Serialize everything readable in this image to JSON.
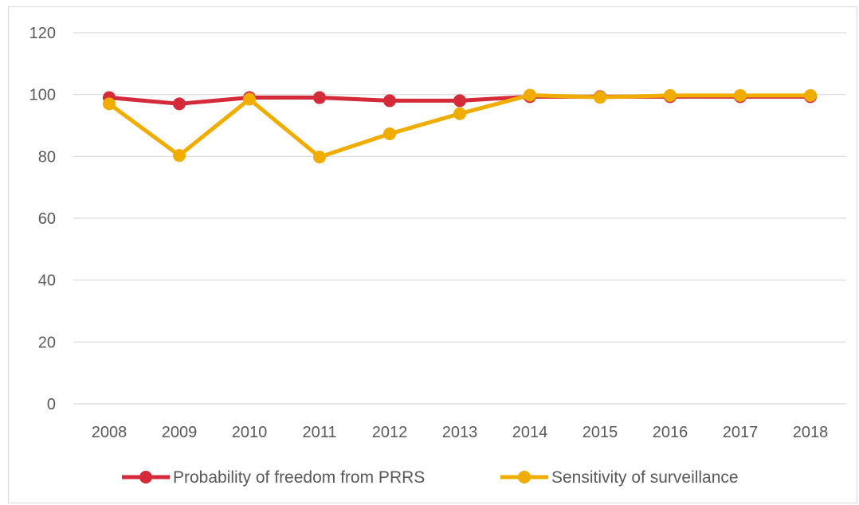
{
  "chart_data": {
    "type": "line",
    "title": "",
    "xlabel": "",
    "ylabel": "",
    "x": [
      "2008",
      "2009",
      "2010",
      "2011",
      "2012",
      "2013",
      "2014",
      "2015",
      "2016",
      "2017",
      "2018"
    ],
    "ylim": [
      0,
      120
    ],
    "yticks": [
      0,
      20,
      40,
      60,
      80,
      100,
      120
    ],
    "grid": true,
    "legend_position": "bottom",
    "series": [
      {
        "name": "Probability of freedom from PRRS",
        "color": "#d42a3a",
        "values": [
          99,
          97,
          99,
          99,
          98,
          98,
          99.3,
          99.3,
          99.3,
          99.3,
          99.3
        ]
      },
      {
        "name": "Sensitivity of surveillance",
        "color": "#f0ad00",
        "values": [
          97,
          80.3,
          98.5,
          79.8,
          87.3,
          93.8,
          99.8,
          99.1,
          99.7,
          99.7,
          99.7
        ]
      }
    ]
  }
}
